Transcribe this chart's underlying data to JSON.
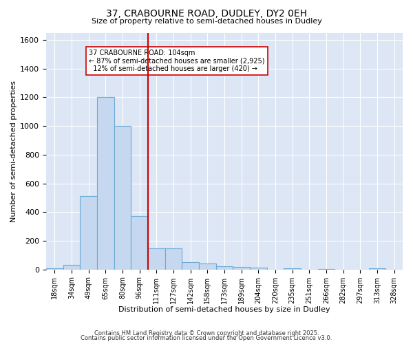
{
  "title": "37, CRABOURNE ROAD, DUDLEY, DY2 0EH",
  "subtitle": "Size of property relative to semi-detached houses in Dudley",
  "xlabel": "Distribution of semi-detached houses by size in Dudley",
  "ylabel": "Number of semi-detached properties",
  "bin_labels": [
    "18sqm",
    "34sqm",
    "49sqm",
    "65sqm",
    "80sqm",
    "96sqm",
    "111sqm",
    "127sqm",
    "142sqm",
    "158sqm",
    "173sqm",
    "189sqm",
    "204sqm",
    "220sqm",
    "235sqm",
    "251sqm",
    "266sqm",
    "282sqm",
    "297sqm",
    "313sqm",
    "328sqm"
  ],
  "bin_values": [
    10,
    30,
    510,
    1200,
    1000,
    375,
    148,
    148,
    50,
    40,
    25,
    20,
    15,
    0,
    10,
    0,
    5,
    0,
    0,
    10,
    0
  ],
  "bar_color": "#c5d8f0",
  "bar_edge_color": "#6aaad4",
  "vline_x": 6,
  "vline_color": "#cc0000",
  "annotation_text": "37 CRABOURNE ROAD: 104sqm\n← 87% of semi-detached houses are smaller (2,925)\n  12% of semi-detached houses are larger (420) →",
  "annotation_box_color": "#ffffff",
  "annotation_box_edge": "#cc0000",
  "ylim": [
    0,
    1650
  ],
  "background_color": "#dce6f5",
  "footer1": "Contains HM Land Registry data © Crown copyright and database right 2025.",
  "footer2": "Contains public sector information licensed under the Open Government Licence v3.0."
}
